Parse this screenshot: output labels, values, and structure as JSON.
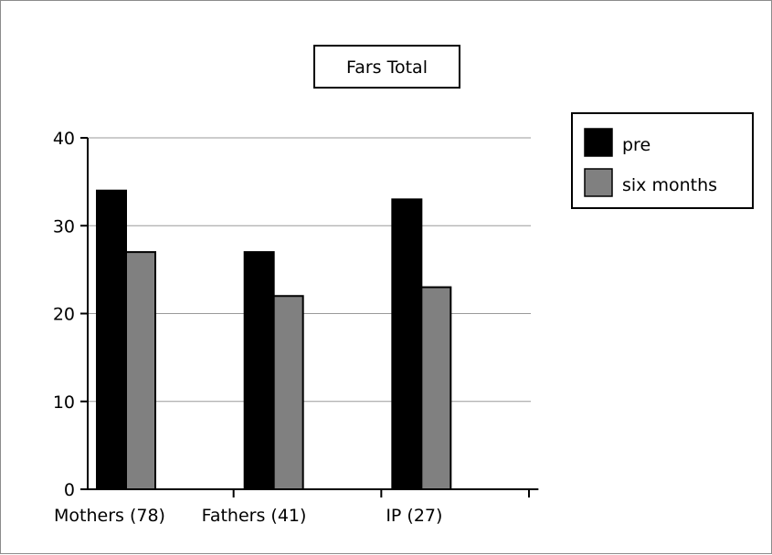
{
  "chart_data": {
    "type": "bar",
    "title": "Fars Total",
    "xlabel": "",
    "ylabel": "",
    "categories": [
      "Mothers (78)",
      "Fathers (41)",
      "IP (27)"
    ],
    "series": [
      {
        "name": "pre",
        "values": [
          34,
          27,
          33
        ],
        "color": "#000000"
      },
      {
        "name": "six months",
        "values": [
          27,
          22,
          23
        ],
        "color": "#808080"
      }
    ],
    "ylim": [
      0,
      40
    ],
    "yticks": [
      0,
      10,
      20,
      30,
      40
    ],
    "grid": true,
    "legend_position": "top-right"
  }
}
